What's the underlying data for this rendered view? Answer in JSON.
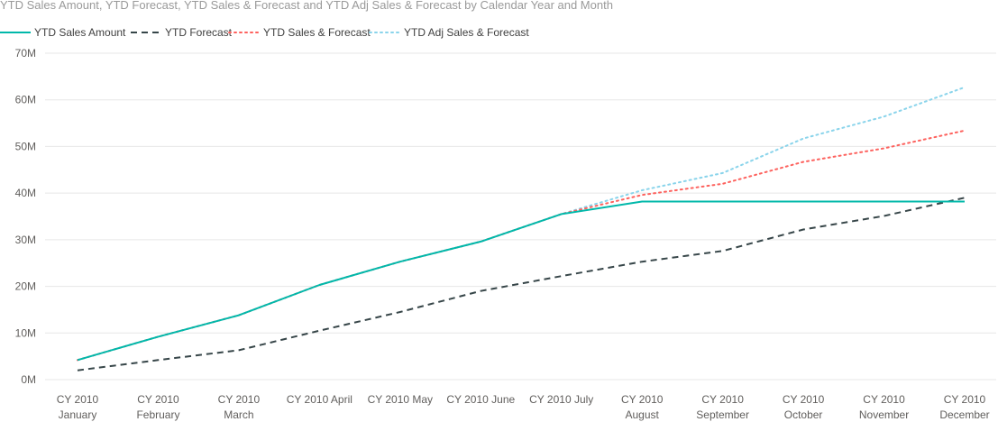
{
  "chart_data": {
    "type": "line",
    "title": "YTD Sales Amount, YTD Forecast, YTD Sales & Forecast and YTD Adj Sales & Forecast by Calendar Year and Month",
    "xlabel": "",
    "ylabel": "",
    "categories": [
      [
        "CY 2010",
        "January"
      ],
      [
        "CY 2010",
        "February"
      ],
      [
        "CY 2010",
        "March"
      ],
      [
        "CY 2010 April"
      ],
      [
        "CY 2010 May"
      ],
      [
        "CY 2010 June"
      ],
      [
        "CY 2010 July"
      ],
      [
        "CY 2010",
        "August"
      ],
      [
        "CY 2010",
        "September"
      ],
      [
        "CY 2010",
        "October"
      ],
      [
        "CY 2010",
        "November"
      ],
      [
        "CY 2010",
        "December"
      ]
    ],
    "ylim": [
      0,
      70000000
    ],
    "yticks": [
      {
        "value": 0,
        "label": "0M"
      },
      {
        "value": 10000000,
        "label": "10M"
      },
      {
        "value": 20000000,
        "label": "20M"
      },
      {
        "value": 30000000,
        "label": "30M"
      },
      {
        "value": 40000000,
        "label": "40M"
      },
      {
        "value": 50000000,
        "label": "50M"
      },
      {
        "value": 60000000,
        "label": "60M"
      },
      {
        "value": 70000000,
        "label": "70M"
      }
    ],
    "grid": true,
    "legend_position": "top-left",
    "series": [
      {
        "name": "YTD Sales Amount",
        "color": "#01B8AA",
        "style": "solid",
        "values": [
          4200000,
          9200000,
          13800000,
          20300000,
          25300000,
          29600000,
          35500000,
          38200000,
          38200000,
          38200000,
          38200000,
          38200000
        ]
      },
      {
        "name": "YTD Forecast",
        "color": "#374649",
        "style": "dashed",
        "values": [
          2000000,
          4200000,
          6300000,
          10500000,
          14500000,
          19000000,
          22200000,
          25300000,
          27600000,
          32200000,
          35100000,
          39000000
        ]
      },
      {
        "name": "YTD Sales & Forecast",
        "color": "#FD625E",
        "style": "dotted",
        "values": [
          4200000,
          9200000,
          13800000,
          20300000,
          25300000,
          29600000,
          35500000,
          39600000,
          42000000,
          46700000,
          49600000,
          53400000
        ]
      },
      {
        "name": "YTD Adj Sales & Forecast",
        "color": "#8AD4EB",
        "style": "dotted",
        "values": [
          4200000,
          9200000,
          13800000,
          20300000,
          25300000,
          29600000,
          35500000,
          40600000,
          44300000,
          51700000,
          56400000,
          62700000
        ]
      }
    ]
  }
}
